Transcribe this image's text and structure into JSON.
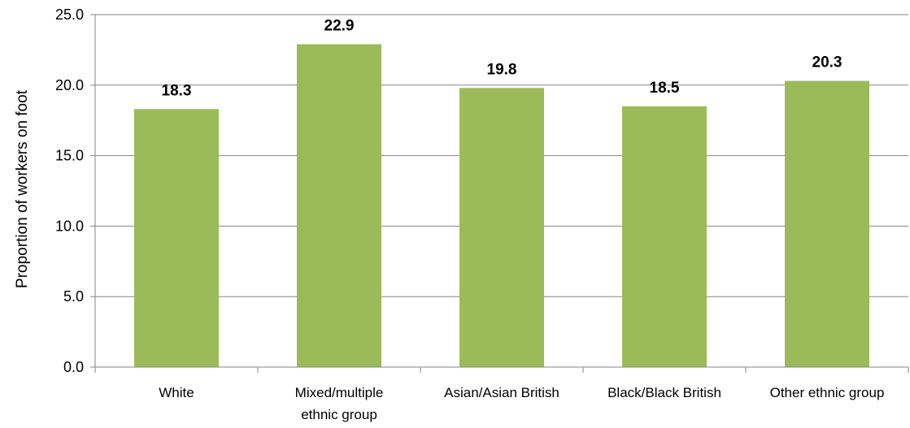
{
  "chart_data": {
    "type": "bar",
    "categories": [
      [
        "White"
      ],
      [
        "Mixed/multiple",
        "ethnic group"
      ],
      [
        "Asian/Asian British"
      ],
      [
        "Black/Black British"
      ],
      [
        "Other ethnic group"
      ]
    ],
    "values": [
      18.3,
      22.9,
      19.8,
      18.5,
      20.3
    ],
    "data_labels": [
      "18.3",
      "22.9",
      "19.8",
      "18.5",
      "20.3"
    ],
    "title": "",
    "xlabel": "",
    "ylabel": "Proportion of workers on foot",
    "ylim": [
      0,
      25
    ],
    "yticks": [
      "0.0",
      "5.0",
      "10.0",
      "15.0",
      "20.0",
      "25.0"
    ],
    "ytick_values": [
      0,
      5,
      10,
      15,
      20,
      25
    ],
    "grid": true,
    "legend": "none",
    "colors": {
      "bar": "#9bbb59",
      "grid": "#868686",
      "axis": "#868686",
      "text": "#000000"
    }
  }
}
